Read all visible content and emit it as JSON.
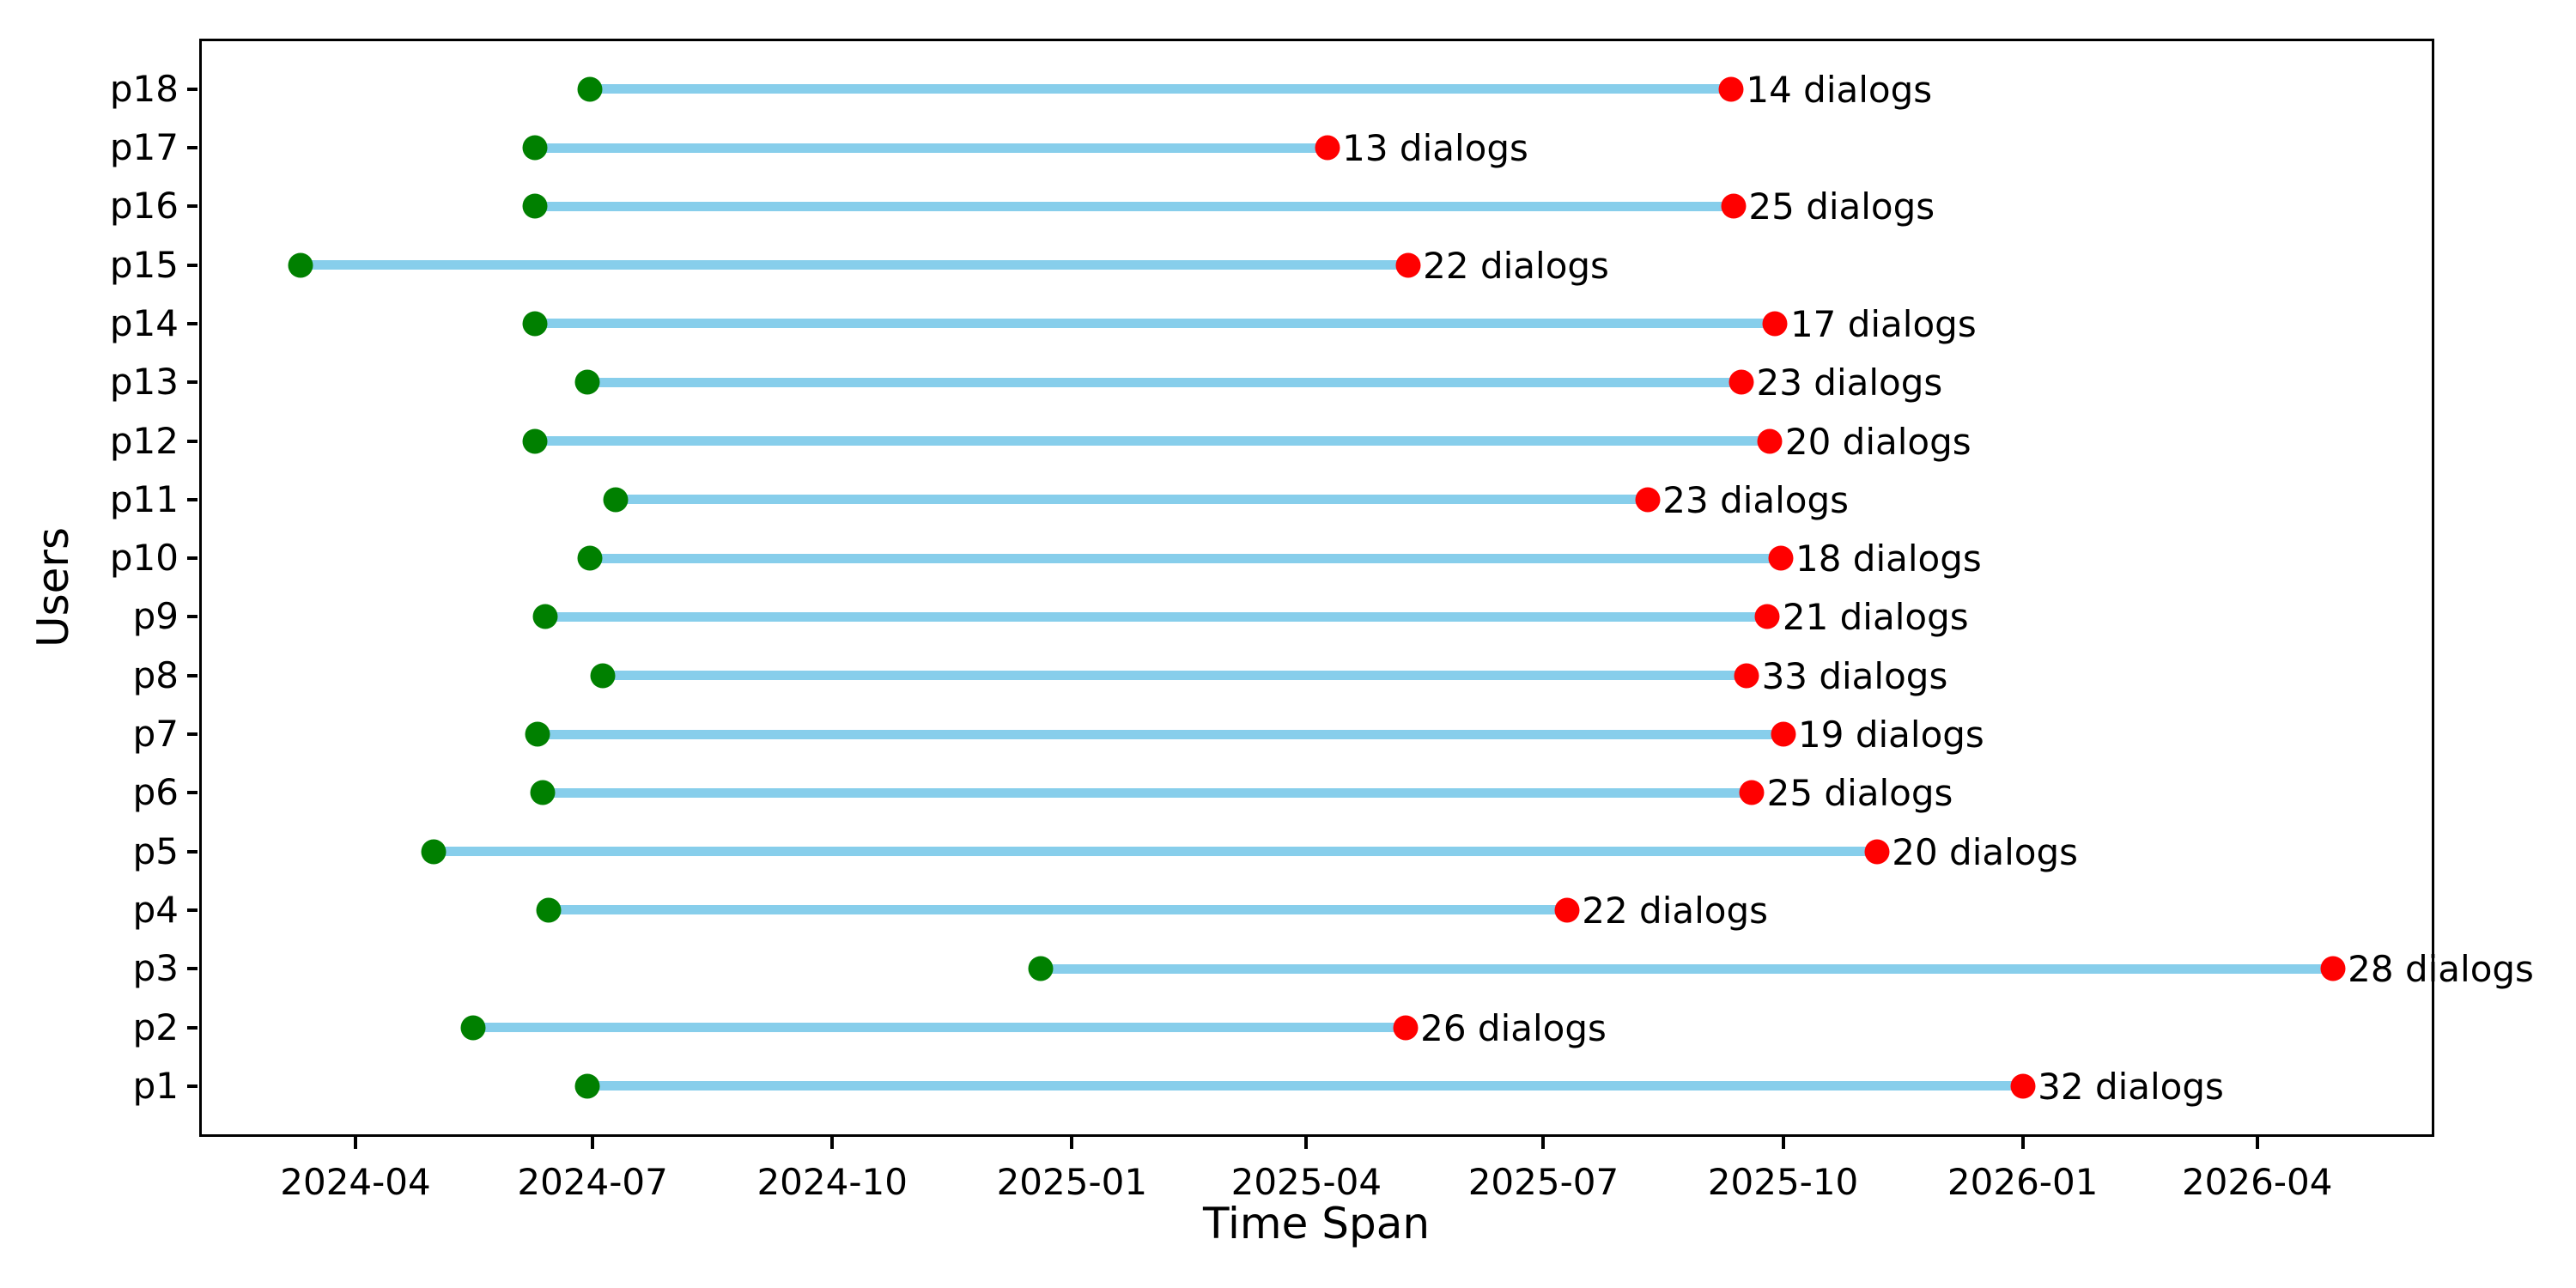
{
  "chart_data": {
    "type": "dumbbell_timeline",
    "title": "",
    "xlabel": "Time Span",
    "ylabel": "Users",
    "grid": false,
    "legend": null,
    "annotation_suffix": " dialogs",
    "colors": {
      "span_line": "#87CEEB",
      "start_dot": "#008000",
      "end_dot": "#FF0000",
      "text": "#000000",
      "spine": "#000000",
      "background": "#FFFFFF"
    },
    "x_axis": {
      "min": "2024-02-01",
      "max": "2026-06-08",
      "ticks": [
        {
          "date": "2024-04-01",
          "label": "2024-04"
        },
        {
          "date": "2024-07-01",
          "label": "2024-07"
        },
        {
          "date": "2024-10-01",
          "label": "2024-10"
        },
        {
          "date": "2025-01-01",
          "label": "2025-01"
        },
        {
          "date": "2025-04-01",
          "label": "2025-04"
        },
        {
          "date": "2025-07-01",
          "label": "2025-07"
        },
        {
          "date": "2025-10-01",
          "label": "2025-10"
        },
        {
          "date": "2026-01-01",
          "label": "2026-01"
        },
        {
          "date": "2026-04-01",
          "label": "2026-04"
        }
      ]
    },
    "rows": [
      {
        "user": "p18",
        "start": "2024-06-30",
        "end": "2025-09-11",
        "dialogs": 14,
        "label": "14 dialogs"
      },
      {
        "user": "p17",
        "start": "2024-06-09",
        "end": "2025-04-09",
        "dialogs": 13,
        "label": "13 dialogs"
      },
      {
        "user": "p16",
        "start": "2024-06-09",
        "end": "2025-09-12",
        "dialogs": 25,
        "label": "25 dialogs"
      },
      {
        "user": "p15",
        "start": "2024-03-11",
        "end": "2025-05-10",
        "dialogs": 22,
        "label": "22 dialogs"
      },
      {
        "user": "p14",
        "start": "2024-06-09",
        "end": "2025-09-28",
        "dialogs": 17,
        "label": "17 dialogs"
      },
      {
        "user": "p13",
        "start": "2024-06-29",
        "end": "2025-09-15",
        "dialogs": 23,
        "label": "23 dialogs"
      },
      {
        "user": "p12",
        "start": "2024-06-09",
        "end": "2025-09-26",
        "dialogs": 20,
        "label": "20 dialogs"
      },
      {
        "user": "p11",
        "start": "2024-07-10",
        "end": "2025-08-10",
        "dialogs": 23,
        "label": "23 dialogs"
      },
      {
        "user": "p10",
        "start": "2024-06-30",
        "end": "2025-09-30",
        "dialogs": 18,
        "label": "18 dialogs"
      },
      {
        "user": "p9",
        "start": "2024-06-13",
        "end": "2025-09-25",
        "dialogs": 21,
        "label": "21 dialogs"
      },
      {
        "user": "p8",
        "start": "2024-07-05",
        "end": "2025-09-17",
        "dialogs": 33,
        "label": "33 dialogs"
      },
      {
        "user": "p7",
        "start": "2024-06-10",
        "end": "2025-10-01",
        "dialogs": 19,
        "label": "19 dialogs"
      },
      {
        "user": "p6",
        "start": "2024-06-12",
        "end": "2025-09-19",
        "dialogs": 25,
        "label": "25 dialogs"
      },
      {
        "user": "p5",
        "start": "2024-05-01",
        "end": "2025-11-06",
        "dialogs": 20,
        "label": "20 dialogs"
      },
      {
        "user": "p4",
        "start": "2024-06-14",
        "end": "2025-07-10",
        "dialogs": 22,
        "label": "22 dialogs"
      },
      {
        "user": "p3",
        "start": "2024-12-20",
        "end": "2026-04-30",
        "dialogs": 28,
        "label": "28 dialogs"
      },
      {
        "user": "p2",
        "start": "2024-05-16",
        "end": "2025-05-09",
        "dialogs": 26,
        "label": "26 dialogs"
      },
      {
        "user": "p1",
        "start": "2024-06-29",
        "end": "2026-01-01",
        "dialogs": 32,
        "label": "32 dialogs"
      }
    ]
  }
}
